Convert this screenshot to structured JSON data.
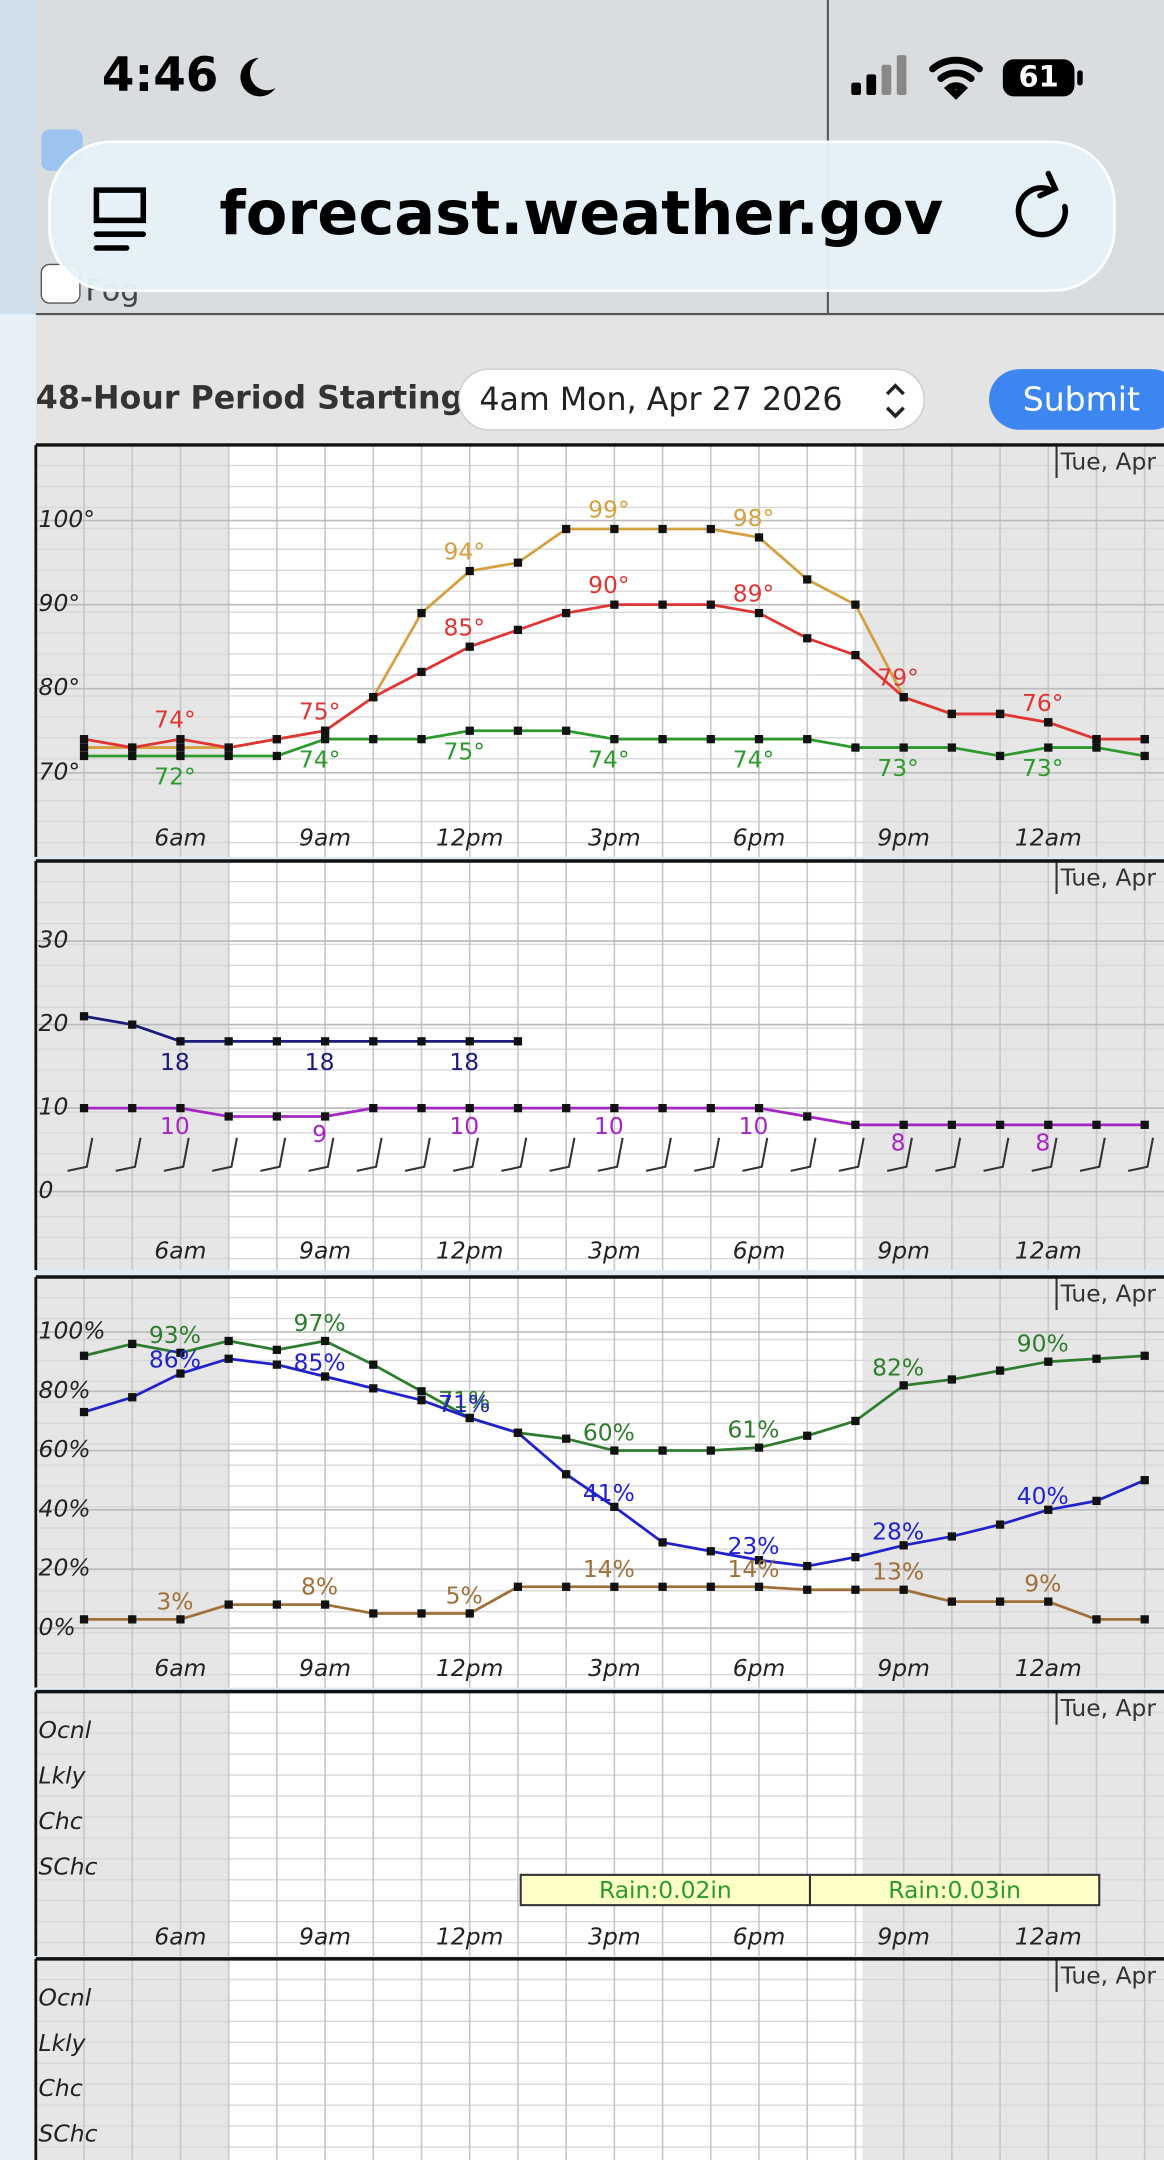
{
  "status_bar": {
    "time": "4:46",
    "battery": "61"
  },
  "browser": {
    "url": "forecast.weather.gov"
  },
  "form": {
    "fog_label": "Fog",
    "period_label": "48-Hour Period Starting:",
    "period_value": "4am Mon, Apr 27 2026",
    "submit": "Submit"
  },
  "chart_data": [
    {
      "type": "line",
      "header": "Tue, Apr",
      "categories": [
        null,
        null,
        "6am",
        null,
        null,
        "9am",
        null,
        null,
        "12pm",
        null,
        null,
        "3pm",
        null,
        null,
        "6pm",
        null,
        null,
        "9pm",
        null,
        null,
        "12am",
        null,
        null
      ],
      "ylim": [
        60,
        109
      ],
      "yticks": [
        {
          "value": 70,
          "label": "70°"
        },
        {
          "value": 80,
          "label": "80°"
        },
        {
          "value": 90,
          "label": "90°"
        },
        {
          "value": 100,
          "label": "100°"
        }
      ],
      "series": [
        {
          "color": "#d4a040",
          "values": [
            73,
            73,
            73,
            73,
            74,
            75,
            79,
            89,
            94,
            95,
            99,
            99,
            99,
            99,
            98,
            93,
            90,
            79,
            77,
            77,
            76,
            74,
            74
          ],
          "value_labels": [
            null,
            null,
            null,
            null,
            null,
            null,
            null,
            null,
            "94°",
            null,
            null,
            "99°",
            null,
            null,
            "98°",
            null,
            null,
            null,
            null,
            null,
            null,
            null,
            null
          ]
        },
        {
          "color": "#e03535",
          "values": [
            74,
            73,
            74,
            73,
            74,
            75,
            79,
            82,
            85,
            87,
            89,
            90,
            90,
            90,
            89,
            86,
            84,
            79,
            77,
            77,
            76,
            74,
            74
          ],
          "value_labels": [
            null,
            null,
            "74°",
            null,
            null,
            "75°",
            null,
            null,
            "85°",
            null,
            null,
            "90°",
            null,
            null,
            "89°",
            null,
            null,
            "79°",
            null,
            null,
            "76°",
            null,
            null
          ]
        },
        {
          "color": "#2e9a2e",
          "values": [
            72,
            72,
            72,
            72,
            72,
            74,
            74,
            74,
            75,
            75,
            75,
            74,
            74,
            74,
            74,
            74,
            73,
            73,
            73,
            72,
            73,
            73,
            72
          ],
          "value_labels": [
            null,
            null,
            "72°",
            null,
            null,
            "74°",
            null,
            null,
            "75°",
            null,
            null,
            "74°",
            null,
            null,
            "74°",
            null,
            null,
            "73°",
            null,
            null,
            "73°",
            null,
            null
          ]
        }
      ]
    },
    {
      "type": "line",
      "header": "Tue, Apr",
      "categories": [
        null,
        null,
        "6am",
        null,
        null,
        "9am",
        null,
        null,
        "12pm",
        null,
        null,
        "3pm",
        null,
        null,
        "6pm",
        null,
        null,
        "9pm",
        null,
        null,
        "12am",
        null,
        null
      ],
      "ylim": [
        -9.4,
        39.6
      ],
      "yticks": [
        0,
        10,
        20,
        30
      ],
      "series": [
        {
          "color": "#1c1c7a",
          "values": [
            21,
            20,
            18,
            18,
            18,
            18,
            18,
            18,
            18,
            18,
            null,
            null,
            null,
            null,
            null,
            null,
            null,
            null,
            null,
            null,
            null,
            null,
            null
          ],
          "value_labels": [
            null,
            null,
            "18",
            null,
            null,
            "18",
            null,
            null,
            "18",
            null,
            null,
            null,
            null,
            null,
            null,
            null,
            null,
            null,
            null,
            null,
            null,
            null,
            null
          ]
        },
        {
          "color": "#a526c4",
          "values": [
            10,
            10,
            10,
            9,
            9,
            9,
            10,
            10,
            10,
            10,
            10,
            10,
            10,
            10,
            10,
            9,
            8,
            8,
            8,
            8,
            8,
            8,
            8
          ],
          "value_labels": [
            null,
            null,
            "10",
            null,
            null,
            "9",
            null,
            null,
            "10",
            null,
            null,
            "10",
            null,
            null,
            "10",
            null,
            null,
            "8",
            null,
            null,
            "8",
            null,
            null
          ]
        }
      ]
    },
    {
      "type": "line",
      "header": "Tue, Apr",
      "categories": [
        null,
        null,
        "6am",
        null,
        null,
        "9am",
        null,
        null,
        "12pm",
        null,
        null,
        "3pm",
        null,
        null,
        "6pm",
        null,
        null,
        "9pm",
        null,
        null,
        "12am",
        null,
        null
      ],
      "ylim": [
        -20,
        118.6
      ],
      "yticks": [
        {
          "value": 0,
          "label": "0%"
        },
        {
          "value": 20,
          "label": "20%"
        },
        {
          "value": 40,
          "label": "40%"
        },
        {
          "value": 60,
          "label": "60%"
        },
        {
          "value": 80,
          "label": "80%"
        },
        {
          "value": 100,
          "label": "100%"
        }
      ],
      "series": [
        {
          "color": "#2e7d2e",
          "values": [
            92,
            96,
            93,
            97,
            94,
            97,
            89,
            80,
            71,
            66,
            64,
            60,
            60,
            60,
            61,
            65,
            70,
            82,
            84,
            87,
            90,
            91,
            92
          ],
          "value_labels": [
            null,
            null,
            "93%",
            null,
            null,
            "97%",
            null,
            null,
            "71%",
            null,
            null,
            "60%",
            null,
            null,
            "61%",
            null,
            null,
            "82%",
            null,
            null,
            "90%",
            null,
            null
          ]
        },
        {
          "color": "#2222cc",
          "values": [
            73,
            78,
            86,
            91,
            89,
            85,
            81,
            77,
            71,
            66,
            52,
            41,
            29,
            26,
            23,
            21,
            24,
            28,
            31,
            35,
            40,
            43,
            50
          ],
          "value_labels": [
            null,
            null,
            "86%",
            null,
            null,
            "85%",
            null,
            null,
            "71%",
            null,
            null,
            "41%",
            null,
            null,
            "23%",
            null,
            null,
            "28%",
            null,
            null,
            "40%",
            null,
            null
          ]
        },
        {
          "color": "#a0703a",
          "values": [
            3,
            3,
            3,
            8,
            8,
            8,
            5,
            5,
            5,
            14,
            14,
            14,
            14,
            14,
            14,
            13,
            13,
            13,
            9,
            9,
            9,
            3,
            3
          ],
          "value_labels": [
            null,
            null,
            "3%",
            null,
            null,
            "8%",
            null,
            null,
            "5%",
            null,
            null,
            "14%",
            null,
            null,
            "14%",
            null,
            null,
            "13%",
            null,
            null,
            "9%",
            null,
            null
          ]
        }
      ]
    },
    {
      "type": "category",
      "header": "Tue, Apr",
      "categories": [
        null,
        null,
        "6am",
        null,
        null,
        "9am",
        null,
        null,
        "12pm",
        null,
        null,
        "3pm",
        null,
        null,
        "6pm",
        null,
        null,
        "9pm",
        null,
        null,
        "12am",
        null,
        null
      ],
      "levels": [
        "Ocnl",
        "Lkly",
        "Chc",
        "SChc"
      ],
      "annotations": [
        "Rain:0.02in",
        "Rain:0.03in"
      ]
    },
    {
      "type": "category",
      "header": "Tue, Apr",
      "levels": [
        "Ocnl",
        "Lkly",
        "Chc",
        "SChc"
      ]
    }
  ]
}
